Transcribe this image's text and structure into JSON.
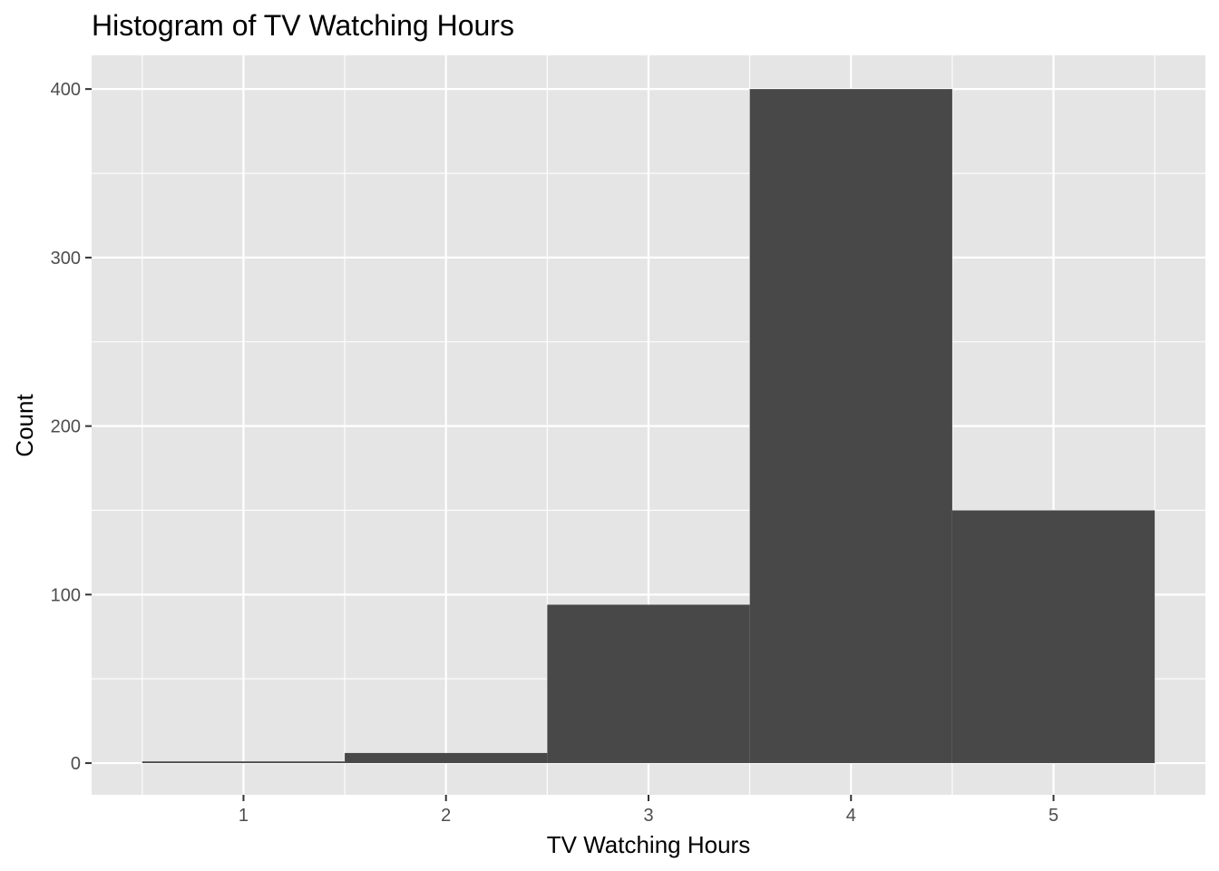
{
  "chart_data": {
    "type": "bar",
    "title": "Histogram of TV Watching Hours",
    "xlabel": "TV Watching Hours",
    "ylabel": "Count",
    "categories": [
      "1",
      "2",
      "3",
      "4",
      "5"
    ],
    "bins": [
      {
        "center": 1,
        "count": 1
      },
      {
        "center": 2,
        "count": 6
      },
      {
        "center": 3,
        "count": 94
      },
      {
        "center": 4,
        "count": 400
      },
      {
        "center": 5,
        "count": 150
      }
    ],
    "bin_width": 1,
    "xlim": [
      0.25,
      5.75
    ],
    "ylim": [
      -18.8,
      420
    ],
    "x_ticks": [
      1,
      2,
      3,
      4,
      5
    ],
    "y_ticks": [
      0,
      100,
      200,
      300,
      400
    ],
    "grid": true,
    "colors": {
      "panel_background": "#e5e5e5",
      "grid": "#ffffff",
      "bar_fill": "#484848",
      "tick_text": "#4d4d4d"
    }
  }
}
